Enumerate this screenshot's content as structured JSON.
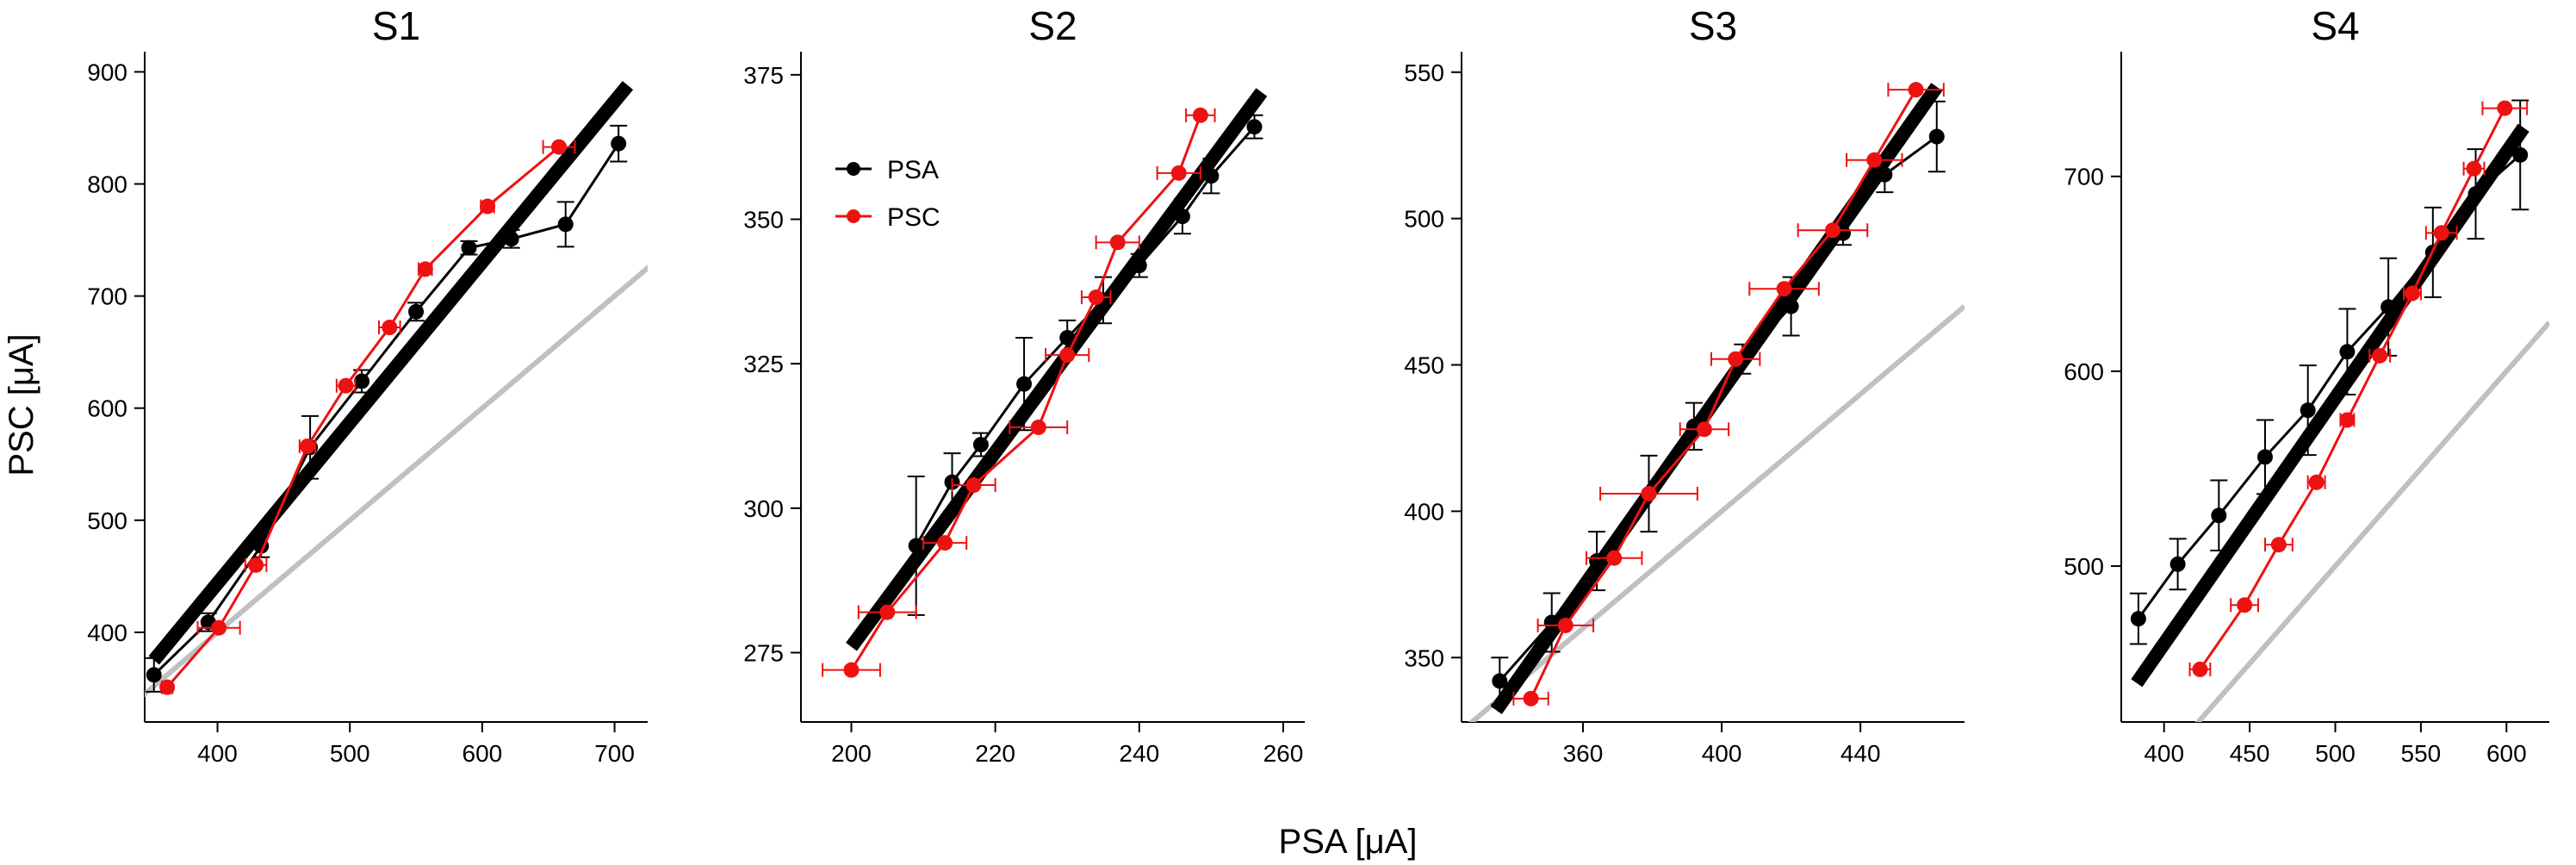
{
  "figure": {
    "ylabel": "PSC [μA]",
    "xlabel": "PSA [μA]",
    "legend": {
      "placement": "panel S2, top-left",
      "entries": [
        {
          "label": "PSA",
          "color": "#000000"
        },
        {
          "label": "PSC",
          "color": "#ee1111"
        }
      ]
    },
    "colors": {
      "psa": "#000000",
      "psc": "#ee1111",
      "fit": "#000000",
      "identity": "#c0c0c0"
    }
  },
  "chart_data": [
    {
      "type": "line",
      "title": "S1",
      "xlim": [
        345,
        725
      ],
      "ylim": [
        320,
        918
      ],
      "xticks": [
        400,
        500,
        600,
        700
      ],
      "yticks": [
        400,
        500,
        600,
        700,
        800,
        900
      ],
      "fit": [
        [
          352,
          375
        ],
        [
          710,
          888
        ]
      ],
      "identity": [
        [
          340,
          340
        ],
        [
          730,
          730
        ]
      ],
      "series": [
        {
          "name": "PSA",
          "points": [
            {
              "x": 352,
              "y": 362,
              "yerr": 15
            },
            {
              "x": 393,
              "y": 409,
              "yerr": 8
            },
            {
              "x": 433,
              "y": 477,
              "yerr": 10
            },
            {
              "x": 470,
              "y": 565,
              "yerr": 28
            },
            {
              "x": 509,
              "y": 624,
              "yerr": 10
            },
            {
              "x": 550,
              "y": 686,
              "yerr": 8
            },
            {
              "x": 590,
              "y": 743,
              "yerr": 6
            },
            {
              "x": 622,
              "y": 751,
              "yerr": 8
            },
            {
              "x": 663,
              "y": 764,
              "yerr": 20
            },
            {
              "x": 703,
              "y": 836,
              "yerr": 16
            }
          ]
        },
        {
          "name": "PSC",
          "points": [
            {
              "x": 362,
              "y": 351,
              "xerr": 4
            },
            {
              "x": 401,
              "y": 404,
              "xerr": 16
            },
            {
              "x": 429,
              "y": 460,
              "xerr": 8
            },
            {
              "x": 468,
              "y": 566,
              "xerr": 6
            },
            {
              "x": 497,
              "y": 620,
              "xerr": 7
            },
            {
              "x": 530,
              "y": 672,
              "xerr": 8
            },
            {
              "x": 557,
              "y": 724,
              "xerr": 5
            },
            {
              "x": 604,
              "y": 780,
              "xerr": 5
            },
            {
              "x": 658,
              "y": 833,
              "xerr": 12
            }
          ]
        }
      ]
    },
    {
      "type": "line",
      "title": "S2",
      "xlim": [
        193,
        263
      ],
      "ylim": [
        263,
        379
      ],
      "xticks": [
        200,
        220,
        240,
        260
      ],
      "yticks": [
        275,
        300,
        325,
        350,
        375
      ],
      "fit": [
        [
          200,
          276
        ],
        [
          257,
          372
        ]
      ],
      "identity": null,
      "series": [
        {
          "name": "PSA",
          "points": [
            {
              "x": 209,
              "y": 293.5,
              "yerr": 12
            },
            {
              "x": 214,
              "y": 304.5,
              "yerr": 5
            },
            {
              "x": 218,
              "y": 311,
              "yerr": 2
            },
            {
              "x": 224,
              "y": 321.5,
              "yerr": 8
            },
            {
              "x": 230,
              "y": 329.5,
              "yerr": 3
            },
            {
              "x": 235,
              "y": 336,
              "yerr": 4
            },
            {
              "x": 240,
              "y": 342,
              "yerr": 2
            },
            {
              "x": 246,
              "y": 350.5,
              "yerr": 3
            },
            {
              "x": 250,
              "y": 357.5,
              "yerr": 3
            },
            {
              "x": 256,
              "y": 366,
              "yerr": 2
            }
          ]
        },
        {
          "name": "PSC",
          "points": [
            {
              "x": 200,
              "y": 272,
              "xerr": 4
            },
            {
              "x": 205,
              "y": 282,
              "xerr": 4
            },
            {
              "x": 213,
              "y": 294,
              "xerr": 3
            },
            {
              "x": 217,
              "y": 304,
              "xerr": 3
            },
            {
              "x": 226,
              "y": 314,
              "xerr": 4
            },
            {
              "x": 230,
              "y": 326.5,
              "xerr": 3
            },
            {
              "x": 234,
              "y": 336.5,
              "xerr": 2
            },
            {
              "x": 237,
              "y": 346,
              "xerr": 3
            },
            {
              "x": 245.5,
              "y": 358,
              "xerr": 3
            },
            {
              "x": 248.5,
              "y": 368,
              "xerr": 2
            }
          ]
        }
      ]
    },
    {
      "type": "line",
      "title": "S3",
      "xlim": [
        325,
        470
      ],
      "ylim": [
        328,
        557
      ],
      "xticks": [
        360,
        400,
        440
      ],
      "yticks": [
        350,
        400,
        450,
        500,
        550
      ],
      "fit": [
        [
          335,
          332
        ],
        [
          462,
          545
        ]
      ],
      "identity": [
        [
          325,
          325
        ],
        [
          470,
          470
        ]
      ],
      "series": [
        {
          "name": "PSA",
          "points": [
            {
              "x": 336,
              "y": 342,
              "yerr": 8
            },
            {
              "x": 351,
              "y": 362,
              "yerr": 10
            },
            {
              "x": 364,
              "y": 383,
              "yerr": 10
            },
            {
              "x": 379,
              "y": 406,
              "yerr": 13
            },
            {
              "x": 392,
              "y": 429,
              "yerr": 8
            },
            {
              "x": 406,
              "y": 452,
              "yerr": 5
            },
            {
              "x": 420,
              "y": 470,
              "yerr": 10
            },
            {
              "x": 435,
              "y": 495,
              "yerr": 4
            },
            {
              "x": 447,
              "y": 515,
              "yerr": 6
            },
            {
              "x": 462,
              "y": 528,
              "yerr": 12
            }
          ]
        },
        {
          "name": "PSC",
          "points": [
            {
              "x": 345,
              "y": 336,
              "xerr": 5
            },
            {
              "x": 355,
              "y": 361,
              "xerr": 8
            },
            {
              "x": 369,
              "y": 384,
              "xerr": 8
            },
            {
              "x": 379,
              "y": 406,
              "xerr": 14
            },
            {
              "x": 395,
              "y": 428,
              "xerr": 7
            },
            {
              "x": 404,
              "y": 452,
              "xerr": 7
            },
            {
              "x": 418,
              "y": 476,
              "xerr": 10
            },
            {
              "x": 432,
              "y": 496,
              "xerr": 10
            },
            {
              "x": 444,
              "y": 520,
              "xerr": 8
            },
            {
              "x": 456,
              "y": 544,
              "xerr": 8
            }
          ]
        }
      ]
    },
    {
      "type": "line",
      "title": "S4",
      "xlim": [
        375,
        625
      ],
      "ylim": [
        420,
        764
      ],
      "xticks": [
        400,
        450,
        500,
        550,
        600
      ],
      "yticks": [
        500,
        600,
        700
      ],
      "fit": [
        [
          384,
          440
        ],
        [
          610,
          725
        ]
      ],
      "identity": [
        [
          375,
          375
        ],
        [
          625,
          625
        ]
      ],
      "series": [
        {
          "name": "PSA",
          "points": [
            {
              "x": 385,
              "y": 473,
              "yerr": 13
            },
            {
              "x": 408,
              "y": 501,
              "yerr": 13
            },
            {
              "x": 432,
              "y": 526,
              "yerr": 18
            },
            {
              "x": 459,
              "y": 556,
              "yerr": 19
            },
            {
              "x": 484,
              "y": 580,
              "yerr": 23
            },
            {
              "x": 507,
              "y": 610,
              "yerr": 22
            },
            {
              "x": 531,
              "y": 633,
              "yerr": 25
            },
            {
              "x": 557,
              "y": 661,
              "yerr": 23
            },
            {
              "x": 582,
              "y": 691,
              "yerr": 23
            },
            {
              "x": 608,
              "y": 711,
              "yerr": 28
            }
          ]
        },
        {
          "name": "PSC",
          "points": [
            {
              "x": 421,
              "y": 447,
              "xerr": 6
            },
            {
              "x": 447,
              "y": 480,
              "xerr": 8
            },
            {
              "x": 467,
              "y": 511,
              "xerr": 8
            },
            {
              "x": 489,
              "y": 543,
              "xerr": 5
            },
            {
              "x": 507,
              "y": 575,
              "xerr": 4
            },
            {
              "x": 526,
              "y": 608,
              "xerr": 6
            },
            {
              "x": 545,
              "y": 640,
              "xerr": 5
            },
            {
              "x": 562,
              "y": 671,
              "xerr": 9
            },
            {
              "x": 581,
              "y": 704,
              "xerr": 6
            },
            {
              "x": 599,
              "y": 735,
              "xerr": 13
            }
          ]
        }
      ]
    }
  ]
}
